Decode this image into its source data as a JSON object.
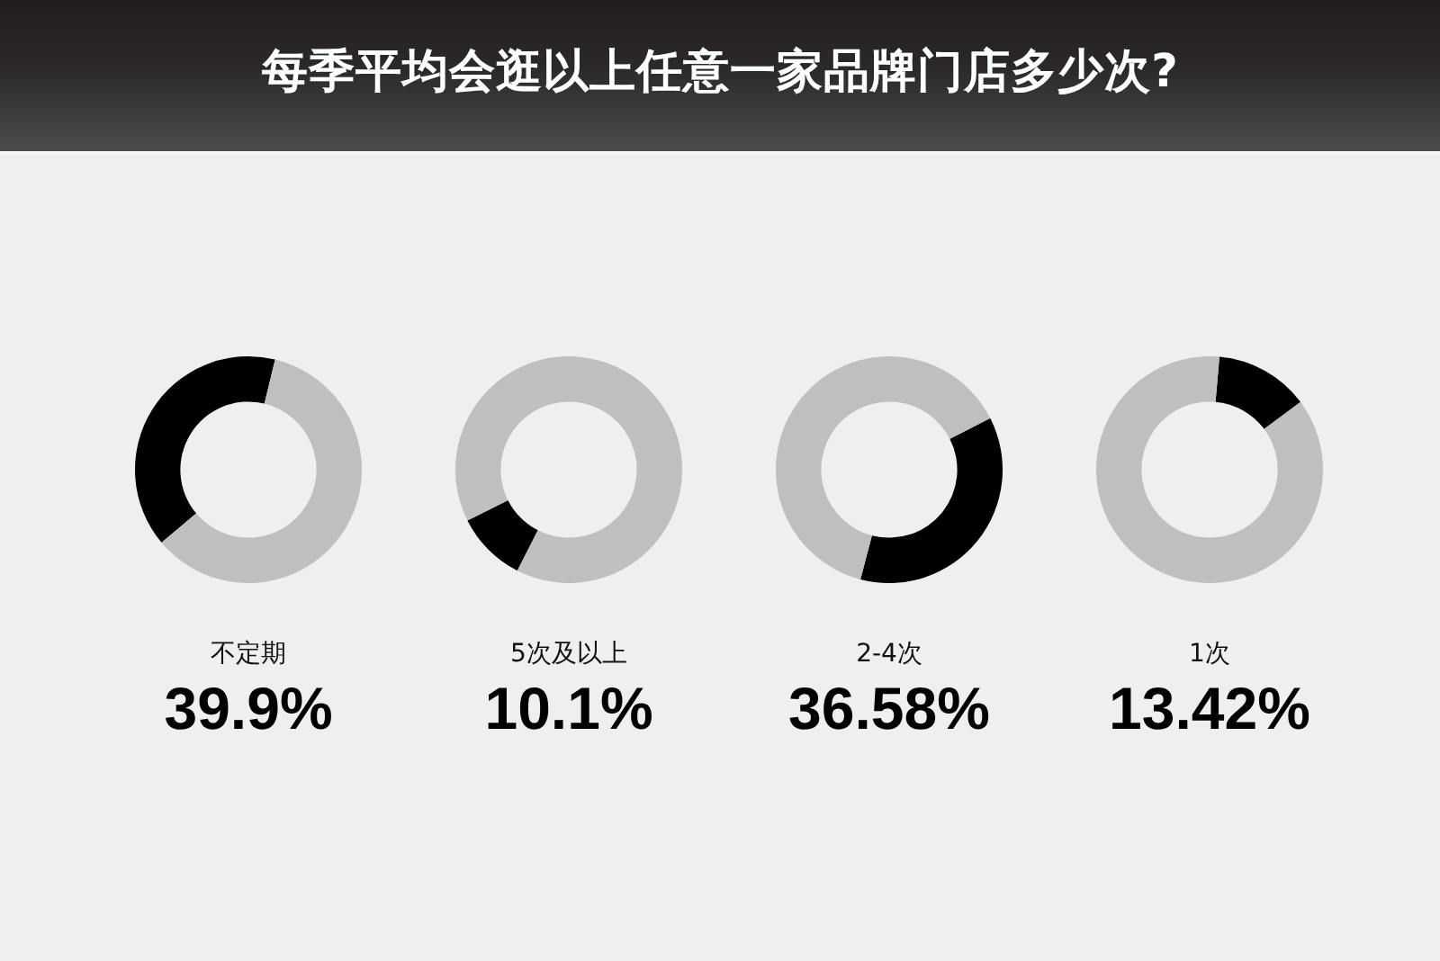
{
  "chart_data": [
    {
      "type": "other",
      "title": "每季平均会逛以上任意一家品牌门店多少次?"
    },
    {
      "type": "donut",
      "title": "不定期",
      "subtitle": "39.9%",
      "categories": [
        null,
        null
      ],
      "values": [
        39.9,
        60.1
      ],
      "colors": [
        "#000000",
        "#bfbfbf"
      ]
    },
    {
      "type": "donut",
      "title": "5次及以上",
      "subtitle": "10.1%",
      "categories": [
        null,
        null
      ],
      "values": [
        10.1,
        89.9
      ],
      "colors": [
        "#000000",
        "#bfbfbf"
      ]
    },
    {
      "type": "donut",
      "title": "2-4次",
      "subtitle": "36.58%",
      "categories": [
        null,
        null
      ],
      "values": [
        36.58,
        63.42
      ],
      "colors": [
        "#000000",
        "#bfbfbf"
      ]
    },
    {
      "type": "donut",
      "title": "1次",
      "subtitle": "13.42%",
      "categories": [
        null,
        null
      ],
      "values": [
        13.42,
        86.58
      ],
      "colors": [
        "#000000",
        "#bfbfbf"
      ]
    }
  ]
}
